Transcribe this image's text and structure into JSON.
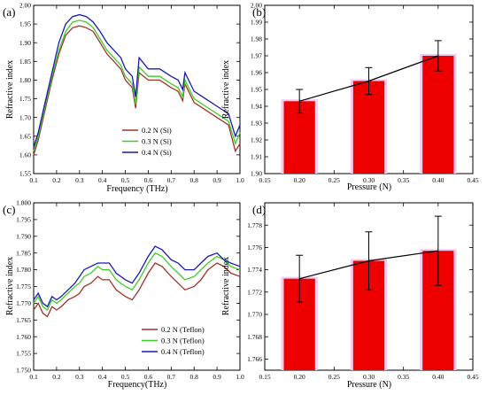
{
  "colors": {
    "s02": "#a0322c",
    "s03": "#3fcc2a",
    "s04": "#1a1ab4",
    "bar": "#ee0000",
    "bar_glow": "#f0c8f0",
    "err": "#000000"
  },
  "chart_data": [
    {
      "panel": "(a)",
      "type": "line",
      "xlabel": "Frequency (THz)",
      "ylabel": "Refractive index",
      "xlim": [
        0.1,
        1.0
      ],
      "ylim": [
        1.55,
        2.0
      ],
      "xticks": [
        0.1,
        0.2,
        0.3,
        0.4,
        0.5,
        0.6,
        0.7,
        0.8,
        0.9,
        1.0
      ],
      "xticklabels": [
        "0.1",
        "0.2",
        "0.3",
        "0.4",
        "0.5",
        "0.6",
        "0.7",
        "0.8",
        "0.9",
        "1.0"
      ],
      "yticks": [
        1.55,
        1.6,
        1.65,
        1.7,
        1.75,
        1.8,
        1.85,
        1.9,
        1.95,
        2.0
      ],
      "yticklabels": [
        "1.55",
        "1.60",
        "1.65",
        "1.70",
        "1.75",
        "1.80",
        "1.85",
        "1.90",
        "1.95",
        "2.00"
      ],
      "legend": "bottom-center",
      "series": [
        {
          "name": "0.2 N (Si)",
          "color_key": "s02",
          "x": [
            0.1,
            0.12,
            0.15,
            0.18,
            0.21,
            0.24,
            0.27,
            0.3,
            0.33,
            0.36,
            0.39,
            0.42,
            0.45,
            0.48,
            0.5,
            0.53,
            0.545,
            0.56,
            0.6,
            0.65,
            0.7,
            0.73,
            0.75,
            0.76,
            0.8,
            0.85,
            0.9,
            0.95,
            0.98,
            1.0
          ],
          "y": [
            1.6,
            1.64,
            1.72,
            1.8,
            1.87,
            1.92,
            1.94,
            1.945,
            1.94,
            1.93,
            1.9,
            1.87,
            1.85,
            1.83,
            1.8,
            1.78,
            1.725,
            1.82,
            1.8,
            1.8,
            1.78,
            1.77,
            1.745,
            1.79,
            1.74,
            1.72,
            1.7,
            1.68,
            1.61,
            1.63
          ]
        },
        {
          "name": "0.3 N (Si)",
          "color_key": "s03",
          "x": [
            0.1,
            0.12,
            0.15,
            0.18,
            0.21,
            0.24,
            0.27,
            0.3,
            0.33,
            0.36,
            0.39,
            0.42,
            0.45,
            0.48,
            0.5,
            0.53,
            0.545,
            0.56,
            0.6,
            0.65,
            0.7,
            0.73,
            0.75,
            0.76,
            0.8,
            0.85,
            0.9,
            0.95,
            0.98,
            1.0
          ],
          "y": [
            1.61,
            1.65,
            1.73,
            1.81,
            1.88,
            1.93,
            1.955,
            1.96,
            1.955,
            1.94,
            1.91,
            1.88,
            1.86,
            1.84,
            1.81,
            1.79,
            1.735,
            1.835,
            1.81,
            1.81,
            1.79,
            1.78,
            1.755,
            1.8,
            1.75,
            1.73,
            1.71,
            1.69,
            1.63,
            1.66
          ]
        },
        {
          "name": "0.4 N (Si)",
          "color_key": "s04",
          "x": [
            0.1,
            0.12,
            0.15,
            0.18,
            0.21,
            0.24,
            0.27,
            0.3,
            0.33,
            0.36,
            0.39,
            0.42,
            0.45,
            0.48,
            0.5,
            0.53,
            0.545,
            0.56,
            0.6,
            0.65,
            0.7,
            0.73,
            0.75,
            0.76,
            0.8,
            0.85,
            0.9,
            0.95,
            0.98,
            1.0
          ],
          "y": [
            1.62,
            1.66,
            1.74,
            1.82,
            1.9,
            1.95,
            1.97,
            1.975,
            1.97,
            1.955,
            1.93,
            1.9,
            1.88,
            1.86,
            1.83,
            1.81,
            1.755,
            1.86,
            1.83,
            1.83,
            1.81,
            1.8,
            1.775,
            1.82,
            1.77,
            1.75,
            1.73,
            1.71,
            1.65,
            1.68
          ]
        }
      ]
    },
    {
      "panel": "(b)",
      "type": "bar",
      "xlabel": "Pressure (N)",
      "ylabel": "Refractive index",
      "xlim": [
        0.15,
        0.45
      ],
      "ylim": [
        1.9,
        2.0
      ],
      "xticks": [
        0.15,
        0.2,
        0.25,
        0.3,
        0.35,
        0.4,
        0.45
      ],
      "xticklabels": [
        "0.15",
        "0.20",
        "0.25",
        "0.30",
        "0.35",
        "0.40",
        "0.45"
      ],
      "yticks": [
        1.9,
        1.91,
        1.92,
        1.93,
        1.94,
        1.95,
        1.96,
        1.97,
        1.98,
        1.99,
        2.0
      ],
      "yticklabels": [
        "1.90",
        "1.91",
        "1.92",
        "1.93",
        "1.94",
        "1.95",
        "1.96",
        "1.97",
        "1.98",
        "1.99",
        "2.00"
      ],
      "x": [
        0.2,
        0.3,
        0.4
      ],
      "bar_width": 0.045,
      "values": [
        1.943,
        1.955,
        1.97
      ],
      "errors": [
        0.007,
        0.008,
        0.009
      ]
    },
    {
      "panel": "(c)",
      "type": "line",
      "xlabel": "Frequency(THz)",
      "ylabel": "Refractive index",
      "xlim": [
        0.1,
        1.0
      ],
      "ylim": [
        1.75,
        1.8
      ],
      "xticks": [
        0.1,
        0.2,
        0.3,
        0.4,
        0.5,
        0.6,
        0.7,
        0.8,
        0.9,
        1.0
      ],
      "xticklabels": [
        "0.1",
        "0.2",
        "0.3",
        "0.4",
        "0.5",
        "0.6",
        "0.7",
        "0.8",
        "0.9",
        "1.0"
      ],
      "yticks": [
        1.75,
        1.755,
        1.76,
        1.765,
        1.77,
        1.775,
        1.78,
        1.785,
        1.79,
        1.795,
        1.8
      ],
      "yticklabels": [
        "1.750",
        "1.755",
        "1.760",
        "1.765",
        "1.770",
        "1.775",
        "1.780",
        "1.785",
        "1.790",
        "1.795",
        "1.800"
      ],
      "legend": "bottom-right",
      "series": [
        {
          "name": "0.2 N (Teflon)",
          "color_key": "s02",
          "x": [
            0.1,
            0.12,
            0.14,
            0.16,
            0.18,
            0.2,
            0.22,
            0.25,
            0.28,
            0.3,
            0.32,
            0.35,
            0.38,
            0.4,
            0.43,
            0.46,
            0.5,
            0.53,
            0.56,
            0.6,
            0.63,
            0.66,
            0.7,
            0.73,
            0.76,
            0.8,
            0.83,
            0.86,
            0.9,
            0.93,
            0.96,
            1.0
          ],
          "y": [
            1.768,
            1.77,
            1.767,
            1.766,
            1.769,
            1.768,
            1.769,
            1.771,
            1.772,
            1.773,
            1.775,
            1.776,
            1.778,
            1.777,
            1.777,
            1.774,
            1.772,
            1.771,
            1.774,
            1.779,
            1.782,
            1.781,
            1.778,
            1.776,
            1.774,
            1.775,
            1.777,
            1.78,
            1.782,
            1.781,
            1.779,
            1.778
          ]
        },
        {
          "name": "0.3 N (Teflon)",
          "color_key": "s03",
          "x": [
            0.1,
            0.12,
            0.14,
            0.16,
            0.18,
            0.2,
            0.22,
            0.25,
            0.28,
            0.3,
            0.32,
            0.35,
            0.38,
            0.4,
            0.43,
            0.46,
            0.5,
            0.53,
            0.56,
            0.6,
            0.63,
            0.66,
            0.7,
            0.73,
            0.76,
            0.8,
            0.83,
            0.86,
            0.9,
            0.93,
            0.96,
            1.0
          ],
          "y": [
            1.77,
            1.772,
            1.769,
            1.768,
            1.771,
            1.77,
            1.771,
            1.773,
            1.775,
            1.776,
            1.778,
            1.779,
            1.781,
            1.78,
            1.78,
            1.777,
            1.775,
            1.774,
            1.777,
            1.782,
            1.785,
            1.784,
            1.781,
            1.779,
            1.777,
            1.778,
            1.78,
            1.782,
            1.784,
            1.783,
            1.781,
            1.78
          ]
        },
        {
          "name": "0.4 N (Teflon)",
          "color_key": "s04",
          "x": [
            0.1,
            0.12,
            0.14,
            0.16,
            0.18,
            0.2,
            0.22,
            0.25,
            0.28,
            0.3,
            0.32,
            0.35,
            0.38,
            0.4,
            0.43,
            0.46,
            0.5,
            0.53,
            0.56,
            0.6,
            0.63,
            0.66,
            0.7,
            0.73,
            0.76,
            0.8,
            0.83,
            0.86,
            0.9,
            0.93,
            0.96,
            1.0
          ],
          "y": [
            1.771,
            1.773,
            1.77,
            1.769,
            1.772,
            1.771,
            1.772,
            1.774,
            1.776,
            1.778,
            1.78,
            1.781,
            1.782,
            1.782,
            1.782,
            1.779,
            1.777,
            1.776,
            1.779,
            1.784,
            1.787,
            1.786,
            1.783,
            1.782,
            1.78,
            1.78,
            1.782,
            1.784,
            1.785,
            1.783,
            1.782,
            1.781
          ]
        }
      ]
    },
    {
      "panel": "(d)",
      "type": "bar",
      "xlabel": "Pressure (N)",
      "ylabel": "Refractive index",
      "xlim": [
        0.15,
        0.45
      ],
      "ylim": [
        1.765,
        1.78
      ],
      "xticks": [
        0.15,
        0.2,
        0.25,
        0.3,
        0.35,
        0.4,
        0.45
      ],
      "xticklabels": [
        "0.15",
        "0.20",
        "0.25",
        "0.30",
        "0.35",
        "0.40",
        "0.45"
      ],
      "yticks": [
        1.766,
        1.768,
        1.77,
        1.772,
        1.774,
        1.776,
        1.778
      ],
      "yticklabels": [
        "1.766",
        "1.768",
        "1.770",
        "1.772",
        "1.774",
        "1.776",
        "1.778"
      ],
      "x": [
        0.2,
        0.3,
        0.4
      ],
      "bar_width": 0.045,
      "values": [
        1.7732,
        1.7748,
        1.7757
      ],
      "errors": [
        0.0021,
        0.0026,
        0.0031
      ]
    }
  ]
}
